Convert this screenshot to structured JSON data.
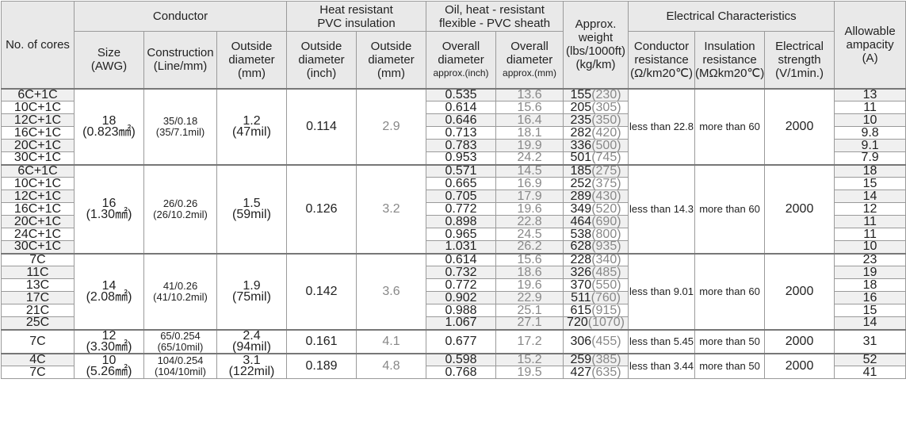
{
  "header": {
    "cores": [
      "No. of cores"
    ],
    "conductor": [
      "Conductor"
    ],
    "size": [
      "Size",
      "(AWG)"
    ],
    "construction": [
      "Construction",
      "(Line/mm)"
    ],
    "conductor_od": [
      "Outside",
      "diameter",
      "(mm)"
    ],
    "insulation": [
      "Heat resistant",
      "PVC insulation"
    ],
    "ins_od_inch": [
      "Outside",
      "diameter",
      "(inch)"
    ],
    "ins_od_mm": [
      "Outside",
      "diameter",
      "(mm)"
    ],
    "sheath": [
      "Oil, heat - resistant",
      "flexible - PVC sheath"
    ],
    "sheath_inch": [
      "Overall",
      "diameter",
      "approx.(inch)"
    ],
    "sheath_mm": [
      "Overall",
      "diameter",
      "approx.(mm)"
    ],
    "weight": [
      "Approx.",
      "weight",
      "(lbs/1000ft)",
      "(kg/km)"
    ],
    "electrical": [
      "Electrical Characteristics"
    ],
    "resistance": [
      "Conductor",
      "resistance",
      "(Ω/km20℃)"
    ],
    "ins_res": [
      "Insulation",
      "resistance",
      "(MΩkm20℃)"
    ],
    "strength": [
      "Electrical",
      "strength",
      "(V/1min.)"
    ],
    "ampacity": [
      "Allowable",
      "ampacity",
      "(A)"
    ]
  },
  "table": {
    "groups": [
      {
        "size_awg": "18",
        "size_mm2": "(0.823㎟)",
        "construction": "35/0.18",
        "construction_mil": "(35/7.1mil)",
        "od_mm": "1.2",
        "od_mil": "(47mil)",
        "ins_inch": 0.114,
        "ins_mm": 2.9,
        "resistance": "less than 22.8",
        "ins_res": "more than 60",
        "strength": 2000,
        "rows": [
          {
            "cores": "6C+1C",
            "sheath_inch": 0.535,
            "sheath_mm": 13.6,
            "weight_lbs": 155,
            "weight_kg": "(230)",
            "ampacity": 13
          },
          {
            "cores": "10C+1C",
            "sheath_inch": 0.614,
            "sheath_mm": 15.6,
            "weight_lbs": 205,
            "weight_kg": "(305)",
            "ampacity": 11
          },
          {
            "cores": "12C+1C",
            "sheath_inch": 0.646,
            "sheath_mm": 16.4,
            "weight_lbs": 235,
            "weight_kg": "(350)",
            "ampacity": 10
          },
          {
            "cores": "16C+1C",
            "sheath_inch": 0.713,
            "sheath_mm": 18.1,
            "weight_lbs": 282,
            "weight_kg": "(420)",
            "ampacity": 9.8
          },
          {
            "cores": "20C+1C",
            "sheath_inch": 0.783,
            "sheath_mm": 19.9,
            "weight_lbs": 336,
            "weight_kg": "(500)",
            "ampacity": 9.1
          },
          {
            "cores": "30C+1C",
            "sheath_inch": 0.953,
            "sheath_mm": 24.2,
            "weight_lbs": 501,
            "weight_kg": "(745)",
            "ampacity": 7.9
          }
        ]
      },
      {
        "size_awg": "16",
        "size_mm2": "(1.30㎟)",
        "construction": "26/0.26",
        "construction_mil": "(26/10.2mil)",
        "od_mm": "1.5",
        "od_mil": "(59mil)",
        "ins_inch": 0.126,
        "ins_mm": 3.2,
        "resistance": "less than 14.3",
        "ins_res": "more than 60",
        "strength": 2000,
        "rows": [
          {
            "cores": "6C+1C",
            "sheath_inch": 0.571,
            "sheath_mm": 14.5,
            "weight_lbs": 185,
            "weight_kg": "(275)",
            "ampacity": 18
          },
          {
            "cores": "10C+1C",
            "sheath_inch": 0.665,
            "sheath_mm": 16.9,
            "weight_lbs": 252,
            "weight_kg": "(375)",
            "ampacity": 15
          },
          {
            "cores": "12C+1C",
            "sheath_inch": 0.705,
            "sheath_mm": 17.9,
            "weight_lbs": 289,
            "weight_kg": "(430)",
            "ampacity": 14
          },
          {
            "cores": "16C+1C",
            "sheath_inch": 0.772,
            "sheath_mm": 19.6,
            "weight_lbs": 349,
            "weight_kg": "(520)",
            "ampacity": 12
          },
          {
            "cores": "20C+1C",
            "sheath_inch": 0.898,
            "sheath_mm": 22.8,
            "weight_lbs": 464,
            "weight_kg": "(690)",
            "ampacity": 11
          },
          {
            "cores": "24C+1C",
            "sheath_inch": 0.965,
            "sheath_mm": 24.5,
            "weight_lbs": 538,
            "weight_kg": "(800)",
            "ampacity": 11
          },
          {
            "cores": "30C+1C",
            "sheath_inch": 1.031,
            "sheath_mm": 26.2,
            "weight_lbs": 628,
            "weight_kg": "(935)",
            "ampacity": 10
          }
        ]
      },
      {
        "size_awg": "14",
        "size_mm2": "(2.08㎟)",
        "construction": "41/0.26",
        "construction_mil": "(41/10.2mil)",
        "od_mm": "1.9",
        "od_mil": "(75mil)",
        "ins_inch": 0.142,
        "ins_mm": 3.6,
        "resistance": "less than 9.01",
        "ins_res": "more than 60",
        "strength": 2000,
        "rows": [
          {
            "cores": "7C",
            "sheath_inch": 0.614,
            "sheath_mm": 15.6,
            "weight_lbs": 228,
            "weight_kg": "(340)",
            "ampacity": 23
          },
          {
            "cores": "11C",
            "sheath_inch": 0.732,
            "sheath_mm": 18.6,
            "weight_lbs": 326,
            "weight_kg": "(485)",
            "ampacity": 19
          },
          {
            "cores": "13C",
            "sheath_inch": 0.772,
            "sheath_mm": 19.6,
            "weight_lbs": 370,
            "weight_kg": "(550)",
            "ampacity": 18
          },
          {
            "cores": "17C",
            "sheath_inch": 0.902,
            "sheath_mm": 22.9,
            "weight_lbs": 511,
            "weight_kg": "(760)",
            "ampacity": 16
          },
          {
            "cores": "21C",
            "sheath_inch": 0.988,
            "sheath_mm": 25.1,
            "weight_lbs": 615,
            "weight_kg": "(915)",
            "ampacity": 15
          },
          {
            "cores": "25C",
            "sheath_inch": 1.067,
            "sheath_mm": 27.1,
            "weight_lbs": 720,
            "weight_kg": "(1070)",
            "ampacity": 14
          }
        ]
      },
      {
        "size_awg": "12",
        "size_mm2": "(3.30㎟)",
        "construction": "65/0.254",
        "construction_mil": "(65/10mil)",
        "od_mm": "2.4",
        "od_mil": "(94mil)",
        "ins_inch": 0.161,
        "ins_mm": 4.1,
        "resistance": "less than 5.45",
        "ins_res": "more than 50",
        "strength": 2000,
        "rows": [
          {
            "cores": "7C",
            "sheath_inch": 0.677,
            "sheath_mm": 17.2,
            "weight_lbs": 306,
            "weight_kg": "(455)",
            "ampacity": 31
          }
        ]
      },
      {
        "size_awg": "10",
        "size_mm2": "(5.26㎟)",
        "construction": "104/0.254",
        "construction_mil": "(104/10mil)",
        "od_mm": "3.1",
        "od_mil": "(122mil)",
        "ins_inch": 0.189,
        "ins_mm": 4.8,
        "resistance": "less than 3.44",
        "ins_res": "more than 50",
        "strength": 2000,
        "rows": [
          {
            "cores": "4C",
            "sheath_inch": 0.598,
            "sheath_mm": 15.2,
            "weight_lbs": 259,
            "weight_kg": "(385)",
            "ampacity": 52
          },
          {
            "cores": "7C",
            "sheath_inch": 0.768,
            "sheath_mm": 19.5,
            "weight_lbs": 427,
            "weight_kg": "(635)",
            "ampacity": 41
          }
        ]
      }
    ]
  }
}
